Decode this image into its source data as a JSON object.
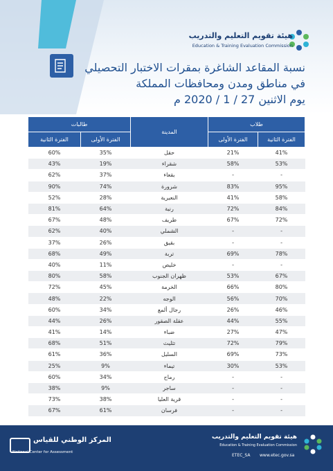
{
  "header": {
    "org_ar": "هيئة تقويم التعليم والتدريب",
    "org_en": "Education & Training Evaluation Commission",
    "title_lines": [
      "نسبة المقاعد الشاغرة بمقرات الاختبار التحصيلي",
      "في مناطق ومدن ومحافظات المملكة",
      "يوم الاثنين 27 / 1 / 2020 م"
    ]
  },
  "table": {
    "groups": [
      "طلاب",
      "المدينة",
      "طالبات"
    ],
    "subheaders": [
      "الفترة الثانية",
      "الفترة الأولى",
      "الفترة الأولى",
      "الفترة الثانية"
    ],
    "rows": [
      [
        "41%",
        "21%",
        "حقل",
        "35%",
        "60%"
      ],
      [
        "53%",
        "58%",
        "شقراء",
        "19%",
        "43%"
      ],
      [
        "-",
        "-",
        "بقعاء",
        "37%",
        "62%"
      ],
      [
        "95%",
        "83%",
        "شرورة",
        "74%",
        "90%"
      ],
      [
        "58%",
        "41%",
        "النعيرية",
        "28%",
        "52%"
      ],
      [
        "84%",
        "72%",
        "رنية",
        "64%",
        "81%"
      ],
      [
        "72%",
        "67%",
        "طريف",
        "48%",
        "67%"
      ],
      [
        "-",
        "-",
        "الشملي",
        "40%",
        "62%"
      ],
      [
        "-",
        "-",
        "بقيق",
        "26%",
        "37%"
      ],
      [
        "78%",
        "69%",
        "تربة",
        "49%",
        "68%"
      ],
      [
        "-",
        "-",
        "خليص",
        "11%",
        "40%"
      ],
      [
        "67%",
        "53%",
        "ظهران الجنوب",
        "58%",
        "80%"
      ],
      [
        "80%",
        "66%",
        "الخرمة",
        "45%",
        "72%"
      ],
      [
        "70%",
        "56%",
        "الوجه",
        "22%",
        "48%"
      ],
      [
        "46%",
        "26%",
        "رجال ألمع",
        "34%",
        "60%"
      ],
      [
        "55%",
        "44%",
        "عقلة الصقور",
        "26%",
        "44%"
      ],
      [
        "47%",
        "27%",
        "ضباء",
        "14%",
        "41%"
      ],
      [
        "79%",
        "72%",
        "تثليث",
        "51%",
        "68%"
      ],
      [
        "73%",
        "69%",
        "السليل",
        "36%",
        "61%"
      ],
      [
        "53%",
        "30%",
        "تيماء",
        "9%",
        "25%"
      ],
      [
        "-",
        "-",
        "رماح",
        "34%",
        "60%"
      ],
      [
        "-",
        "-",
        "ساجر",
        "9%",
        "38%"
      ],
      [
        "-",
        "-",
        "قرية العليا",
        "38%",
        "73%"
      ],
      [
        "-",
        "-",
        "فرسان",
        "61%",
        "67%"
      ]
    ]
  },
  "footer": {
    "nca_ar": "المركز الوطني للقياس",
    "nca_en": "National Center for Assessment",
    "org_ar": "هيئة تقويم التعليم والتدريب",
    "org_en": "Education & Training Evaluation Commission",
    "handle": "ETEC_SA",
    "url": "www.etec.gov.sa"
  }
}
